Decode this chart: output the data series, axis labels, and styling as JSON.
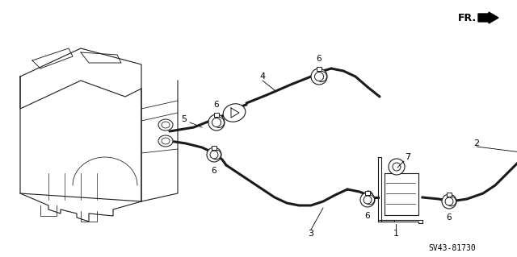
{
  "background_color": "#ffffff",
  "line_color": "#1a1a1a",
  "text_color": "#000000",
  "figsize": [
    6.4,
    3.19
  ],
  "dpi": 100,
  "diagram_id": "SV43-81730",
  "fr_text": "FR.",
  "no_border": true,
  "lw_thin": 0.7,
  "lw_hose": 2.2,
  "lw_part": 0.8
}
